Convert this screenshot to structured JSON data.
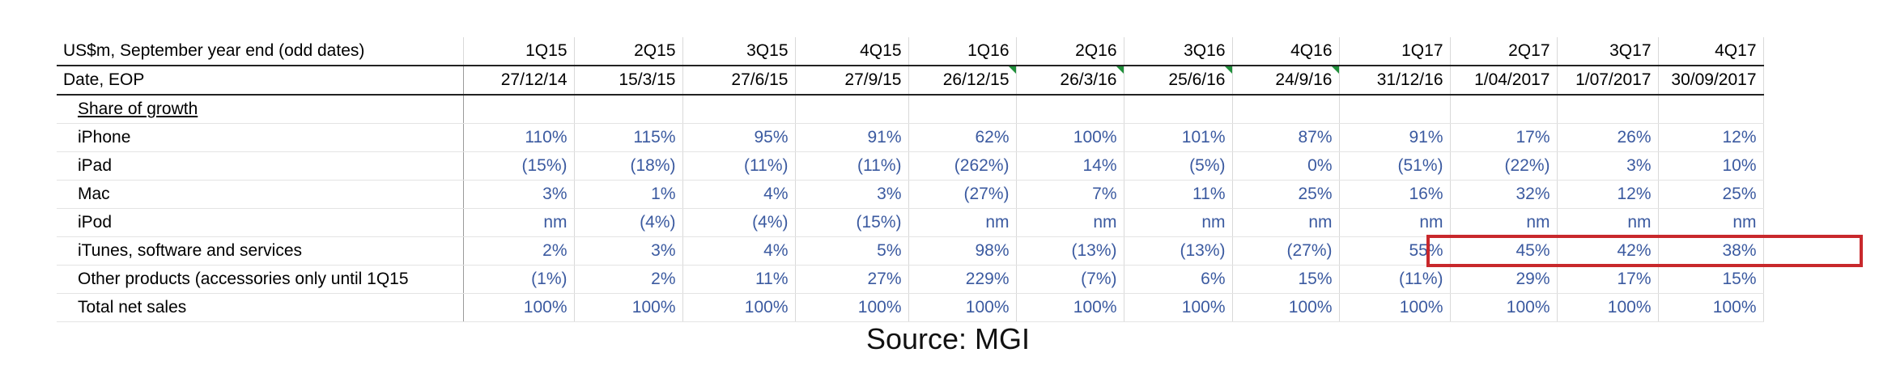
{
  "table": {
    "header_label": "US$m, September year end (odd dates)",
    "quarters": [
      "1Q15",
      "2Q15",
      "3Q15",
      "4Q15",
      "1Q16",
      "2Q16",
      "3Q16",
      "4Q16",
      "1Q17",
      "2Q17",
      "3Q17",
      "4Q17"
    ],
    "date_label": "Date, EOP",
    "dates": [
      "27/12/14",
      "15/3/15",
      "27/6/15",
      "27/9/15",
      "26/12/15",
      "26/3/16",
      "25/6/16",
      "24/9/16",
      "31/12/16",
      "1/04/2017",
      "1/07/2017",
      "30/09/2017"
    ],
    "section_label": "Share of growth",
    "rows": [
      {
        "label": "iPhone",
        "values": [
          "110%",
          "115%",
          "95%",
          "91%",
          "62%",
          "100%",
          "101%",
          "87%",
          "91%",
          "17%",
          "26%",
          "12%"
        ]
      },
      {
        "label": "iPad",
        "values": [
          "(15%)",
          "(18%)",
          "(11%)",
          "(11%)",
          "(262%)",
          "14%",
          "(5%)",
          "0%",
          "(51%)",
          "(22%)",
          "3%",
          "10%"
        ]
      },
      {
        "label": "Mac",
        "values": [
          "3%",
          "1%",
          "4%",
          "3%",
          "(27%)",
          "7%",
          "11%",
          "25%",
          "16%",
          "32%",
          "12%",
          "25%"
        ]
      },
      {
        "label": "iPod",
        "values": [
          "nm",
          "(4%)",
          "(4%)",
          "(15%)",
          "nm",
          "nm",
          "nm",
          "nm",
          "nm",
          "nm",
          "nm",
          "nm"
        ]
      },
      {
        "label": "iTunes, software and services",
        "values": [
          "2%",
          "3%",
          "4%",
          "5%",
          "98%",
          "(13%)",
          "(13%)",
          "(27%)",
          "55%",
          "45%",
          "42%",
          "38%"
        ]
      },
      {
        "label": "Other products (accessories only until 1Q15",
        "values": [
          "(1%)",
          "2%",
          "11%",
          "27%",
          "229%",
          "(7%)",
          "6%",
          "15%",
          "(11%)",
          "29%",
          "17%",
          "15%"
        ]
      },
      {
        "label": "Total net sales",
        "values": [
          "100%",
          "100%",
          "100%",
          "100%",
          "100%",
          "100%",
          "100%",
          "100%",
          "100%",
          "100%",
          "100%",
          "100%"
        ]
      }
    ]
  },
  "colors": {
    "value_text": "#3b5aa0",
    "highlight_box": "#c8282c",
    "cell_marker": "#1f8f3a"
  },
  "source": "Source: MGI"
}
